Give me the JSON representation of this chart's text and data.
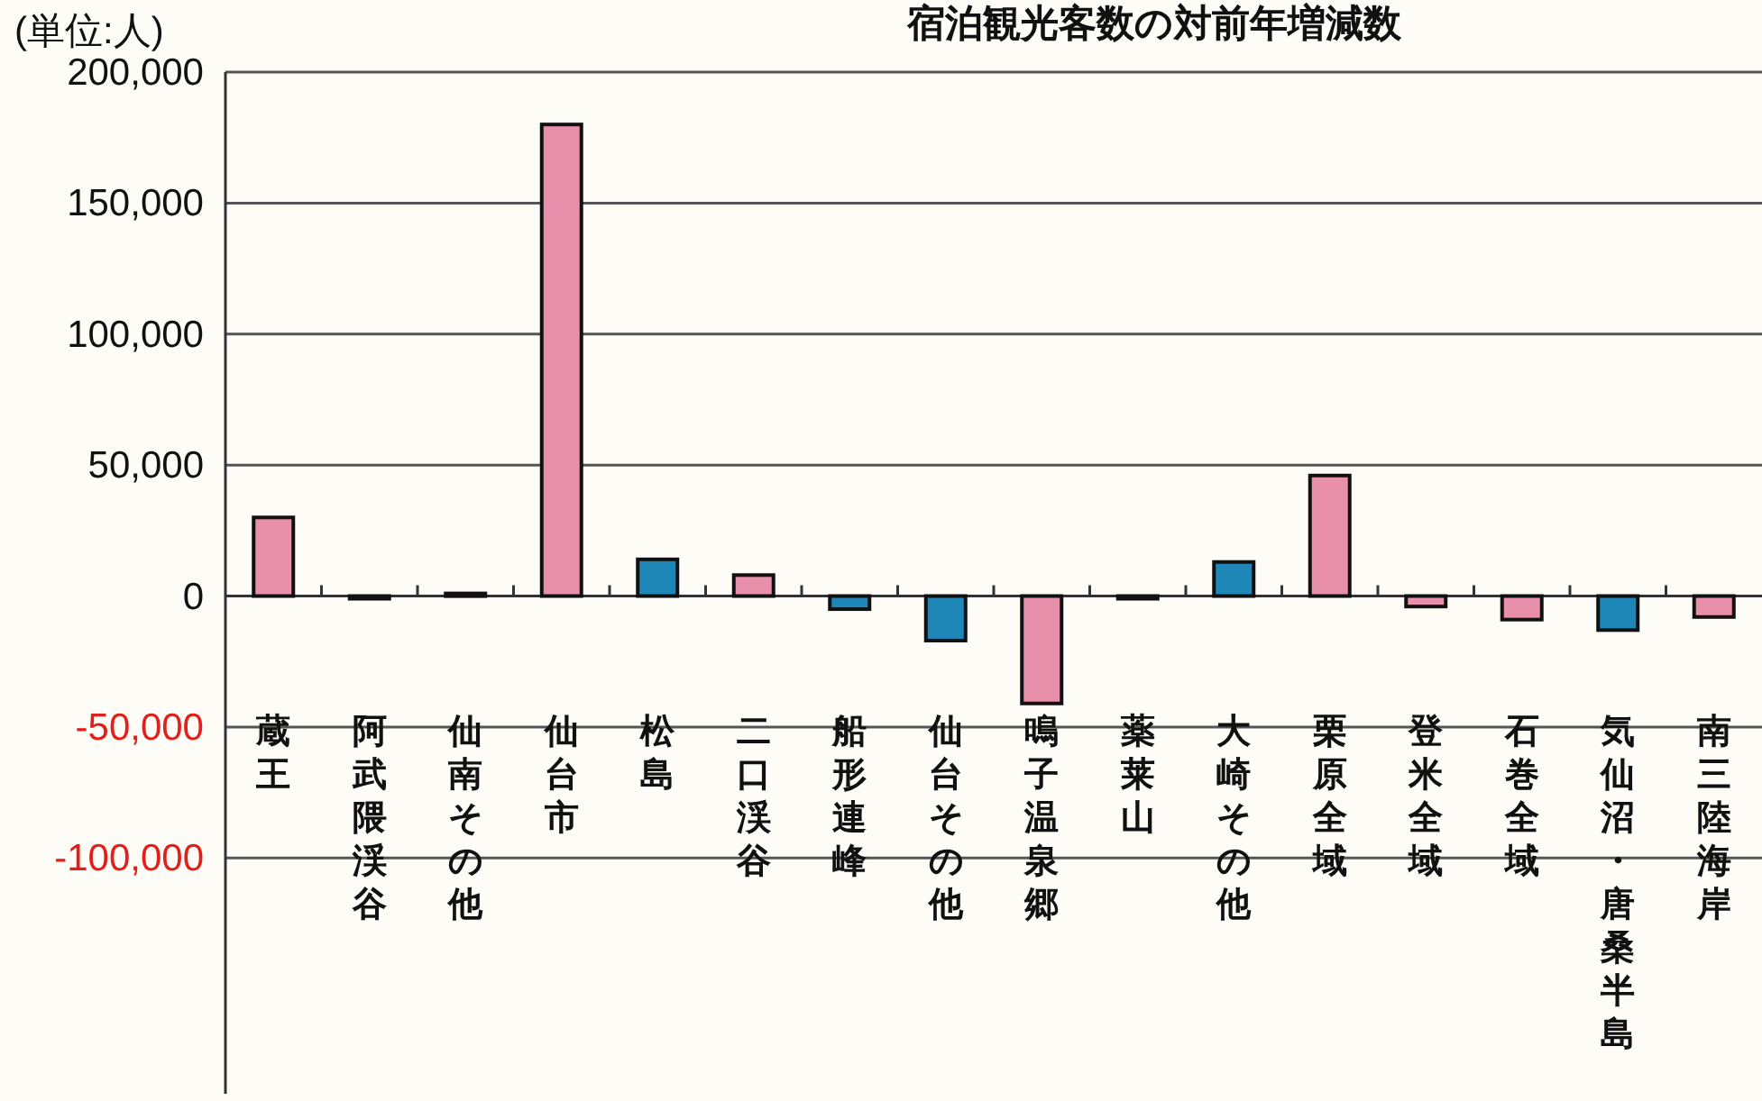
{
  "chart_data": {
    "type": "bar",
    "title": "宿泊観光客数の対前年増減数",
    "ylabel": "(単位:人)",
    "categories": [
      "蔵王",
      "阿武隈渓谷",
      "仙南その他",
      "仙台市",
      "松島",
      "二口渓谷",
      "船形連峰",
      "仙台その他",
      "鳴子温泉郷",
      "薬莱山",
      "大崎その他",
      "栗原全域",
      "登米全域",
      "石巻全域",
      "気仙沼・唐桑半島",
      "南三陸海岸"
    ],
    "values": [
      30000,
      -1000,
      1000,
      180000,
      14000,
      8000,
      -5000,
      -17000,
      -41000,
      -1000,
      13000,
      46000,
      -4000,
      -9000,
      -13000,
      -8000
    ],
    "colors": [
      "#e88fab",
      "#e88fab",
      "#1f86b8",
      "#e88fab",
      "#1f86b8",
      "#e88fab",
      "#1f86b8",
      "#1f86b8",
      "#e88fab",
      "#e88fab",
      "#1f86b8",
      "#e88fab",
      "#e88fab",
      "#e88fab",
      "#1f86b8",
      "#e88fab"
    ],
    "ylim": [
      -190000,
      200000
    ],
    "yticks": [
      {
        "value": 200000,
        "label": "200,000"
      },
      {
        "value": 150000,
        "label": "150,000"
      },
      {
        "value": 100000,
        "label": "100,000"
      },
      {
        "value": 50000,
        "label": "50,000"
      },
      0,
      {
        "value": -50000,
        "label": "-50,000"
      },
      {
        "value": -100000,
        "label": "-100,000"
      }
    ],
    "grid": "y"
  }
}
